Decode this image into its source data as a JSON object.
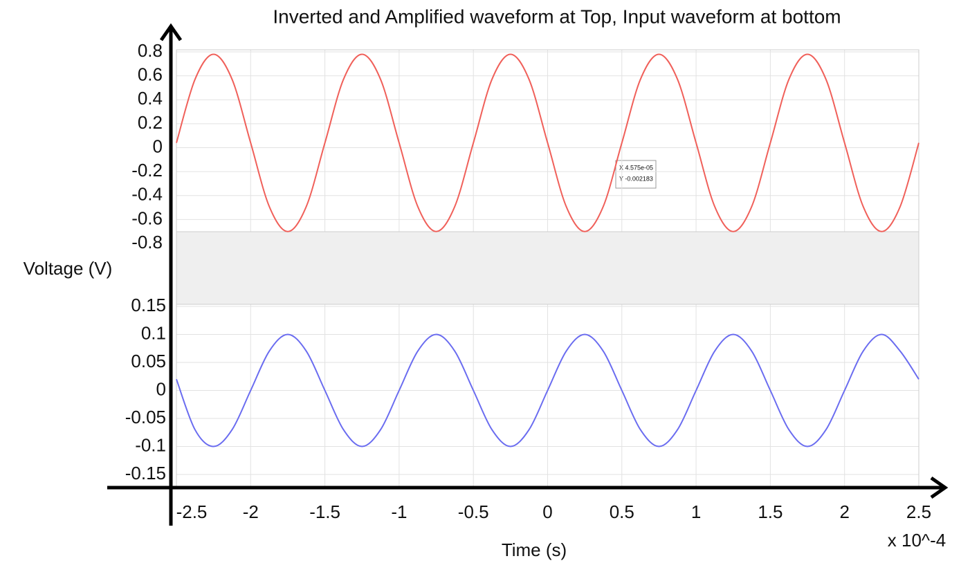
{
  "chart_data": [
    {
      "type": "line",
      "title": "Inverted and Amplified waveform at Top, Input waveform at bottom",
      "ylabel": "Voltage (V)",
      "annotations": [
        "X 4.575e-05",
        "Y -0.002183"
      ],
      "x": [
        -2.5,
        -2.375,
        -2.25,
        -2.125,
        -2,
        -1.875,
        -1.75,
        -1.625,
        -1.5,
        -1.375,
        -1.25,
        -1.125,
        -1,
        -0.875,
        -0.75,
        -0.625,
        -0.5,
        -0.375,
        -0.25,
        -0.125,
        0,
        0.125,
        0.25,
        0.375,
        0.5,
        0.625,
        0.75,
        0.875,
        1,
        1.125,
        1.25,
        1.375,
        1.5,
        1.625,
        1.75,
        1.875,
        2,
        2.125,
        2.25,
        2.375,
        2.5
      ],
      "series": [
        {
          "color": "#f0605a",
          "values": [
            0.04,
            0.57,
            0.78,
            0.57,
            0.04,
            -0.49,
            -0.7,
            -0.49,
            0.04,
            0.57,
            0.78,
            0.57,
            0.04,
            -0.49,
            -0.7,
            -0.49,
            0.04,
            0.57,
            0.78,
            0.57,
            0.04,
            -0.49,
            -0.7,
            -0.49,
            0.04,
            0.57,
            0.78,
            0.57,
            0.04,
            -0.49,
            -0.7,
            -0.49,
            0.04,
            0.57,
            0.78,
            0.57,
            0.04,
            -0.49,
            -0.7,
            -0.49,
            0.04
          ]
        }
      ],
      "xlim": [
        -2.5,
        2.5
      ],
      "ylim": [
        -0.8,
        0.8
      ],
      "yticks": [
        0.8,
        0.6,
        0.4,
        0.2,
        0,
        -0.2,
        -0.4,
        -0.6,
        -0.8
      ],
      "grid": true
    },
    {
      "type": "line",
      "xlabel": "Time (s)",
      "x_multiplier": "x 10^-4",
      "x": [
        -2.5,
        -2.375,
        -2.25,
        -2.125,
        -2,
        -1.875,
        -1.75,
        -1.625,
        -1.5,
        -1.375,
        -1.25,
        -1.125,
        -1,
        -0.875,
        -0.75,
        -0.625,
        -0.5,
        -0.375,
        -0.25,
        -0.125,
        0,
        0.125,
        0.25,
        0.375,
        0.5,
        0.625,
        0.75,
        0.875,
        1,
        1.125,
        1.25,
        1.375,
        1.5,
        1.625,
        1.75,
        1.875,
        2,
        2.125,
        2.25,
        2.375,
        2.5
      ],
      "series": [
        {
          "color": "#6a6cf0",
          "values": [
            0.02,
            -0.07,
            -0.1,
            -0.07,
            0,
            0.07,
            0.1,
            0.07,
            0,
            -0.07,
            -0.1,
            -0.07,
            0,
            0.07,
            0.1,
            0.07,
            0,
            -0.07,
            -0.1,
            -0.07,
            0,
            0.07,
            0.1,
            0.07,
            0,
            -0.07,
            -0.1,
            -0.07,
            0,
            0.07,
            0.1,
            0.07,
            0,
            -0.07,
            -0.1,
            -0.07,
            0,
            0.07,
            0.1,
            0.07,
            0.02
          ]
        }
      ],
      "xlim": [
        -2.5,
        2.5
      ],
      "xticks": [
        -2.5,
        -2,
        -1.5,
        -1,
        -0.5,
        0,
        0.5,
        1,
        1.5,
        2,
        2.5
      ],
      "ylim": [
        -0.15,
        0.15
      ],
      "yticks": [
        0.15,
        0.1,
        0.05,
        0,
        -0.05,
        -0.1,
        -0.15
      ],
      "grid": true
    }
  ]
}
